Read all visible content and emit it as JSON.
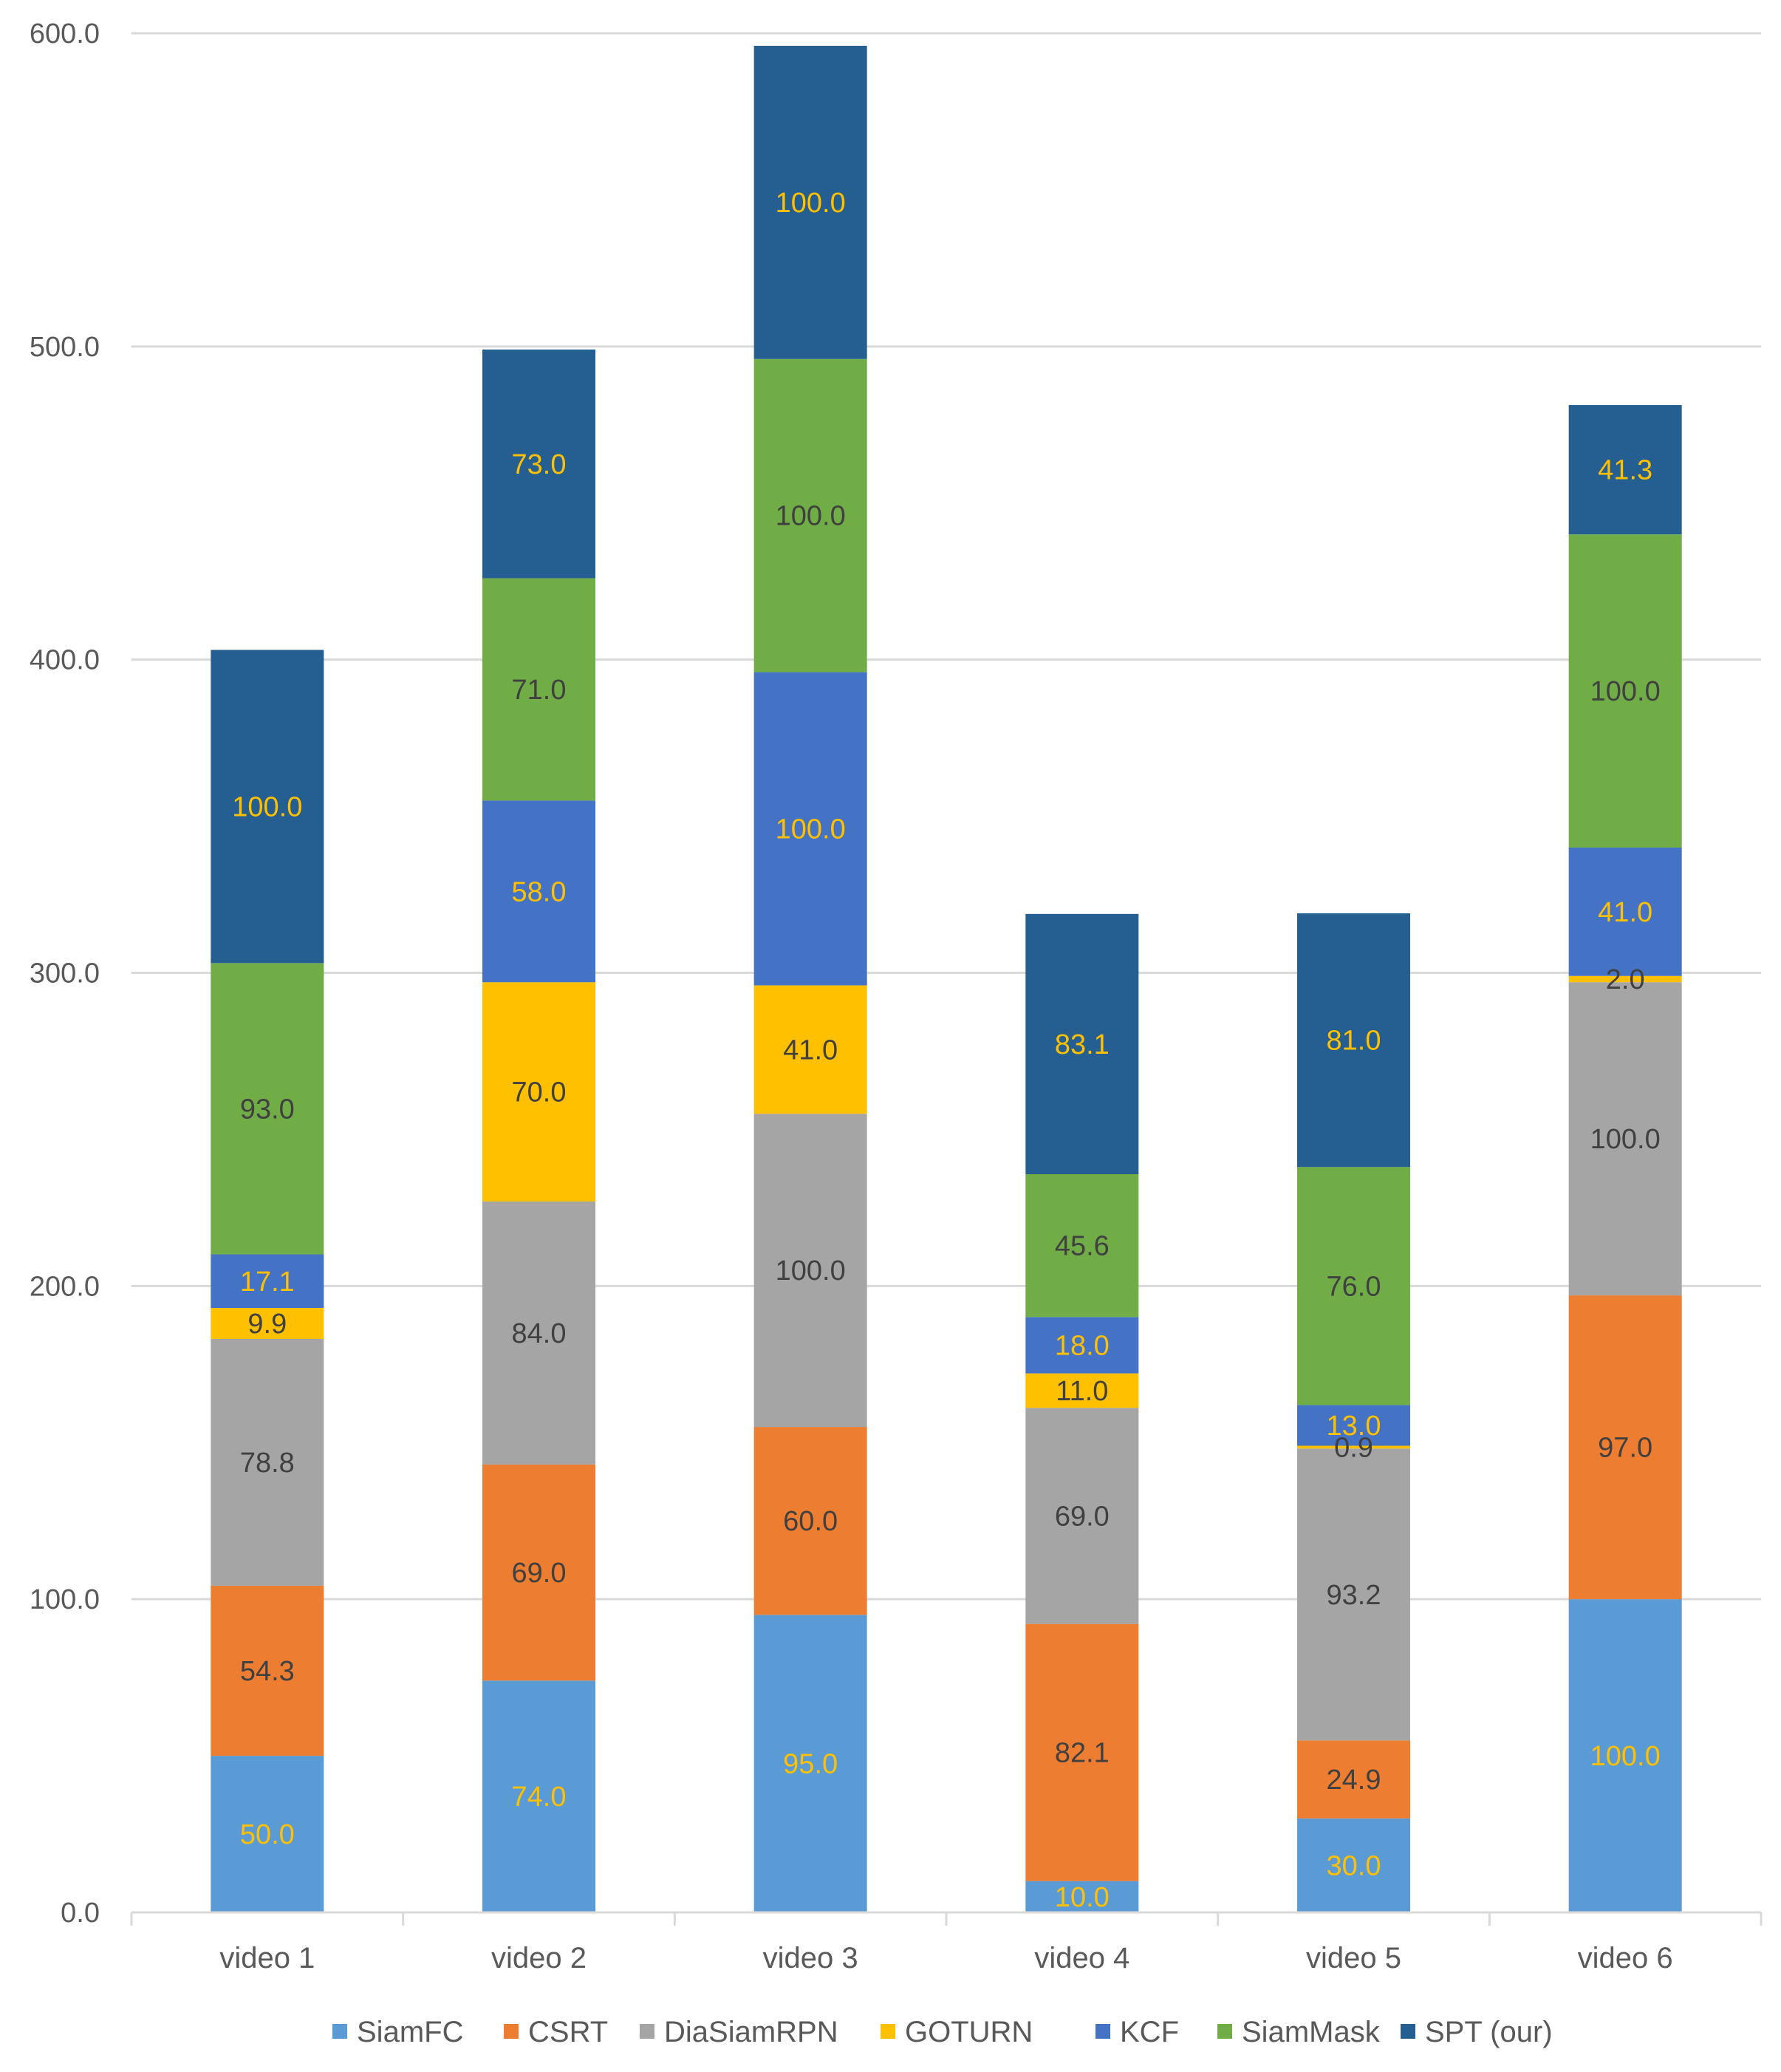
{
  "chart_data": {
    "type": "bar",
    "stacked": true,
    "categories": [
      "video 1",
      "video 2",
      "video 3",
      "video 4",
      "video 5",
      "video 6"
    ],
    "ylim": [
      0,
      600
    ],
    "yticks": [
      0,
      100,
      200,
      300,
      400,
      500,
      600
    ],
    "ytick_labels": [
      "0.0",
      "100.0",
      "200.0",
      "300.0",
      "400.0",
      "500.0",
      "600.0"
    ],
    "grid": true,
    "legend_position": "bottom",
    "series": [
      {
        "name": "SiamFC",
        "color": "#5B9BD5",
        "label_color": "#FFC000",
        "values": [
          50.0,
          74.0,
          95.0,
          10.0,
          30.0,
          100.0
        ],
        "labels": [
          "50.0",
          "74.0",
          "95.0",
          "10.0",
          "30.0",
          "100.0"
        ]
      },
      {
        "name": "CSRT",
        "color": "#ED7D31",
        "label_color": "#404040",
        "values": [
          54.3,
          69.0,
          60.0,
          82.1,
          24.9,
          97.0
        ],
        "labels": [
          "54.3",
          "69.0",
          "60.0",
          "82.1",
          "24.9",
          "97.0"
        ]
      },
      {
        "name": "DiaSiamRPN",
        "color": "#A5A5A5",
        "label_color": "#404040",
        "values": [
          78.8,
          84.0,
          100.0,
          69.0,
          93.2,
          100.0
        ],
        "labels": [
          "78.8",
          "84.0",
          "100.0",
          "69.0",
          "93.2",
          "100.0"
        ]
      },
      {
        "name": "GOTURN",
        "color": "#FFC000",
        "label_color": "#404040",
        "values": [
          9.9,
          70.0,
          41.0,
          11.0,
          0.9,
          2.0
        ],
        "labels": [
          "9.9",
          "70.0",
          "41.0",
          "11.0",
          "0.9",
          "2.0"
        ]
      },
      {
        "name": "KCF",
        "color": "#4472C4",
        "label_color": "#FFC000",
        "values": [
          17.1,
          58.0,
          100.0,
          18.0,
          13.0,
          41.0
        ],
        "labels": [
          "17.1",
          "58.0",
          "100.0",
          "18.0",
          "13.0",
          "41.0"
        ]
      },
      {
        "name": "SiamMask",
        "color": "#70AD47",
        "label_color": "#404040",
        "values": [
          93.0,
          71.0,
          100.0,
          45.6,
          76.0,
          100.0
        ],
        "labels": [
          "93.0",
          "71.0",
          "100.0",
          "45.6",
          "76.0",
          "100.0"
        ]
      },
      {
        "name": "SPT (our)",
        "color": "#255E91",
        "label_color": "#FFC000",
        "values": [
          100.0,
          73.0,
          100.0,
          83.1,
          81.0,
          41.3
        ],
        "labels": [
          "100.0",
          "73.0",
          "100.0",
          "83.1",
          "81.0",
          "41.3"
        ]
      }
    ]
  }
}
